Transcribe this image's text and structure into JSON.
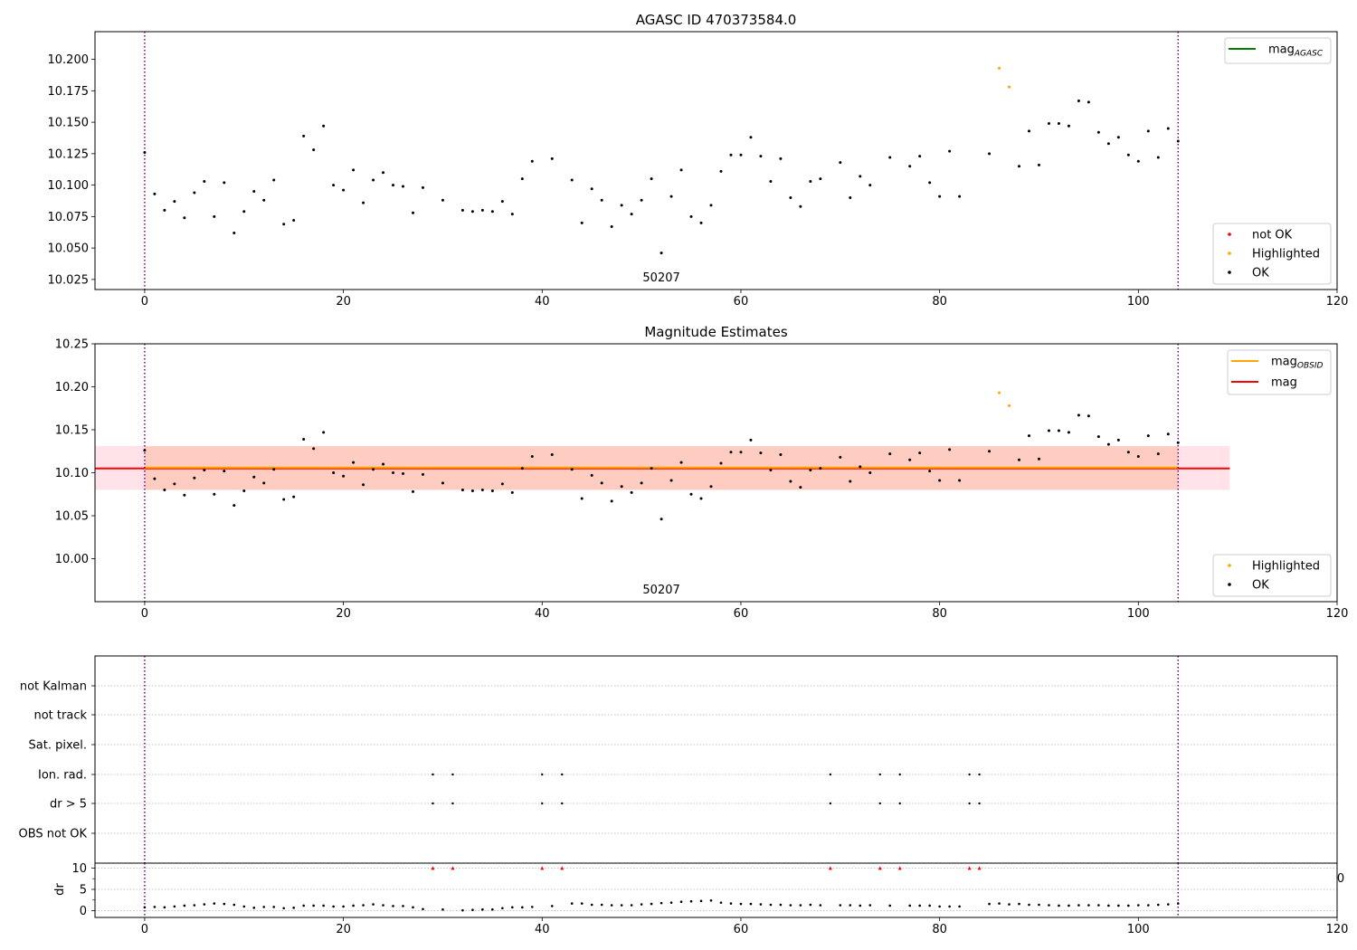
{
  "chart_data": [
    {
      "type": "scatter",
      "title": "AGASC ID 470373584.0",
      "xlim": [
        -5,
        120
      ],
      "ylim": [
        10.017,
        10.222
      ],
      "xticks": [
        0,
        20,
        40,
        60,
        80,
        100,
        120
      ],
      "yticks": [
        10.025,
        10.05,
        10.075,
        10.1,
        10.125,
        10.15,
        10.175,
        10.2
      ],
      "ytick_labels": [
        "10.025",
        "10.050",
        "10.075",
        "10.100",
        "10.125",
        "10.150",
        "10.175",
        "10.200"
      ],
      "obsid_label": {
        "text": "50207",
        "x": 52
      },
      "vlines_x": [
        0,
        104
      ],
      "legend_lines": [
        {
          "label": "mag",
          "sub": "AGASC",
          "color": "#008000"
        }
      ],
      "legend_markers": [
        {
          "label": "not OK",
          "color": "#ff0000"
        },
        {
          "label": "Highlighted",
          "color": "#ffa500"
        },
        {
          "label": "OK",
          "color": "#000000"
        }
      ],
      "series": [
        {
          "name": "OK",
          "color": "#000000",
          "x": [
            0,
            1,
            2,
            3,
            4,
            5,
            6,
            7,
            8,
            9,
            10,
            11,
            12,
            13,
            14,
            15,
            16,
            17,
            18,
            19,
            20,
            21,
            22,
            23,
            24,
            25,
            26,
            27,
            28,
            30,
            32,
            33,
            34,
            35,
            36,
            37,
            38,
            39,
            41,
            43,
            44,
            45,
            46,
            47,
            48,
            49,
            50,
            51,
            52,
            53,
            54,
            55,
            56,
            57,
            58,
            59,
            60,
            61,
            62,
            63,
            64,
            65,
            66,
            67,
            68,
            70,
            71,
            72,
            73,
            75,
            77,
            78,
            79,
            80,
            81,
            82,
            85,
            88,
            89,
            90,
            91,
            92,
            93,
            94,
            95,
            96,
            97,
            98,
            99,
            100,
            101,
            102,
            103,
            104
          ],
          "y": [
            10.126,
            10.093,
            10.08,
            10.087,
            10.074,
            10.094,
            10.103,
            10.075,
            10.102,
            10.062,
            10.079,
            10.095,
            10.088,
            10.104,
            10.069,
            10.072,
            10.139,
            10.128,
            10.147,
            10.1,
            10.096,
            10.112,
            10.086,
            10.104,
            10.11,
            10.1,
            10.099,
            10.078,
            10.098,
            10.088,
            10.08,
            10.079,
            10.08,
            10.079,
            10.087,
            10.077,
            10.105,
            10.119,
            10.121,
            10.104,
            10.07,
            10.097,
            10.088,
            10.067,
            10.084,
            10.077,
            10.088,
            10.105,
            10.046,
            10.091,
            10.112,
            10.075,
            10.07,
            10.084,
            10.111,
            10.124,
            10.124,
            10.138,
            10.123,
            10.103,
            10.121,
            10.09,
            10.083,
            10.103,
            10.105,
            10.118,
            10.09,
            10.107,
            10.1,
            10.122,
            10.115,
            10.123,
            10.102,
            10.091,
            10.127,
            10.091,
            10.125,
            10.115,
            10.143,
            10.116,
            10.149,
            10.149,
            10.147,
            10.167,
            10.166,
            10.142,
            10.133,
            10.138,
            10.124,
            10.119,
            10.143,
            10.122,
            10.145,
            10.135
          ]
        },
        {
          "name": "Highlighted",
          "color": "#ffa500",
          "x": [
            86,
            87
          ],
          "y": [
            10.193,
            10.178
          ]
        }
      ]
    },
    {
      "type": "scatter",
      "title": "Magnitude Estimates",
      "xlim": [
        -5,
        120
      ],
      "ylim": [
        9.95,
        10.25
      ],
      "xticks": [
        0,
        20,
        40,
        60,
        80,
        100,
        120
      ],
      "yticks": [
        10.0,
        10.05,
        10.1,
        10.15,
        10.2,
        10.25
      ],
      "ytick_labels": [
        "10.00",
        "10.05",
        "10.10",
        "10.15",
        "10.20",
        "10.25"
      ],
      "obsid_label": {
        "text": "50207",
        "x": 52
      },
      "vlines_x": [
        0,
        104
      ],
      "bands": [
        {
          "x": [
            -5,
            109.2
          ],
          "y": [
            10.08,
            10.131
          ],
          "color": "#ffc0cb",
          "opacity": 0.45
        },
        {
          "x": [
            0,
            104
          ],
          "y": [
            10.08,
            10.131
          ],
          "color": "#ffa07a",
          "opacity": 0.35
        }
      ],
      "hlines": [
        {
          "x": [
            -5,
            109.2
          ],
          "y": 10.105,
          "color": "#ff0000"
        },
        {
          "x": [
            0,
            104
          ],
          "y": 10.106,
          "color": "#ffa500"
        }
      ],
      "legend_lines": [
        {
          "label": "mag",
          "sub": "OBSID",
          "color": "#ffa500"
        },
        {
          "label": "mag",
          "sub": "",
          "color": "#ff0000"
        }
      ],
      "legend_markers": [
        {
          "label": "Highlighted",
          "color": "#ffa500"
        },
        {
          "label": "OK",
          "color": "#000000"
        }
      ],
      "series_ref": "same points as first panel"
    },
    {
      "type": "scatter",
      "title": "",
      "xlim": [
        -5,
        120
      ],
      "xticks": [
        0,
        20,
        40,
        60,
        80,
        100,
        120
      ],
      "vlines_x": [
        0,
        104
      ],
      "flag_categories": [
        "not Kalman",
        "not track",
        "Sat. pixel.",
        "Ion. rad.",
        "dr > 5",
        "OBS not OK"
      ],
      "flag_points": {
        "Ion. rad.": [
          29,
          31,
          40,
          42,
          69,
          74,
          76,
          83,
          84
        ],
        "dr > 5": [
          29,
          31,
          40,
          42,
          69,
          74,
          76,
          83,
          84
        ]
      },
      "dr_panel": {
        "ylabel": "dr",
        "ylim": [
          -0.5,
          10.5
        ],
        "yticks": [
          0,
          5,
          10
        ],
        "ytick_labels": [
          "0",
          "5",
          "10"
        ],
        "clipped_x": [
          29,
          31,
          40,
          42,
          69,
          74,
          76,
          83,
          84
        ],
        "clipped_color": "#ff0000",
        "edge_label": "0",
        "x": [
          0,
          1,
          2,
          3,
          4,
          5,
          6,
          7,
          8,
          9,
          10,
          11,
          12,
          13,
          14,
          15,
          16,
          17,
          18,
          19,
          20,
          21,
          22,
          23,
          24,
          25,
          26,
          27,
          28,
          30,
          32,
          33,
          34,
          35,
          36,
          37,
          38,
          39,
          41,
          43,
          44,
          45,
          46,
          47,
          48,
          49,
          50,
          51,
          52,
          53,
          54,
          55,
          56,
          57,
          58,
          59,
          60,
          61,
          62,
          63,
          64,
          65,
          66,
          67,
          68,
          70,
          71,
          72,
          73,
          75,
          77,
          78,
          79,
          80,
          81,
          82,
          85,
          86,
          87,
          88,
          89,
          90,
          91,
          92,
          93,
          94,
          95,
          96,
          97,
          98,
          99,
          100,
          101,
          102,
          103,
          104
        ],
        "y": [
          0.8,
          0.9,
          0.8,
          1.0,
          1.2,
          1.3,
          1.5,
          1.7,
          1.6,
          1.4,
          1.0,
          0.7,
          0.9,
          0.9,
          0.6,
          0.7,
          1.2,
          1.2,
          1.2,
          1.0,
          1.0,
          1.2,
          1.3,
          1.5,
          1.3,
          1.1,
          1.1,
          0.8,
          0.4,
          0.3,
          0.1,
          0.2,
          0.3,
          0.3,
          0.6,
          0.8,
          0.8,
          0.9,
          1.1,
          1.7,
          1.7,
          1.4,
          1.4,
          1.3,
          1.3,
          1.3,
          1.5,
          1.6,
          1.8,
          1.9,
          2.1,
          2.2,
          2.3,
          2.4,
          1.9,
          1.7,
          1.6,
          1.6,
          1.5,
          1.4,
          1.4,
          1.3,
          1.3,
          1.4,
          1.3,
          1.3,
          1.3,
          1.2,
          1.3,
          1.2,
          1.2,
          1.2,
          1.2,
          1.0,
          1.0,
          1.0,
          1.6,
          1.7,
          1.5,
          1.6,
          1.4,
          1.4,
          1.3,
          1.2,
          1.2,
          1.3,
          1.3,
          1.3,
          1.2,
          1.2,
          1.2,
          1.3,
          1.3,
          1.4,
          1.5,
          1.7
        ]
      }
    }
  ]
}
